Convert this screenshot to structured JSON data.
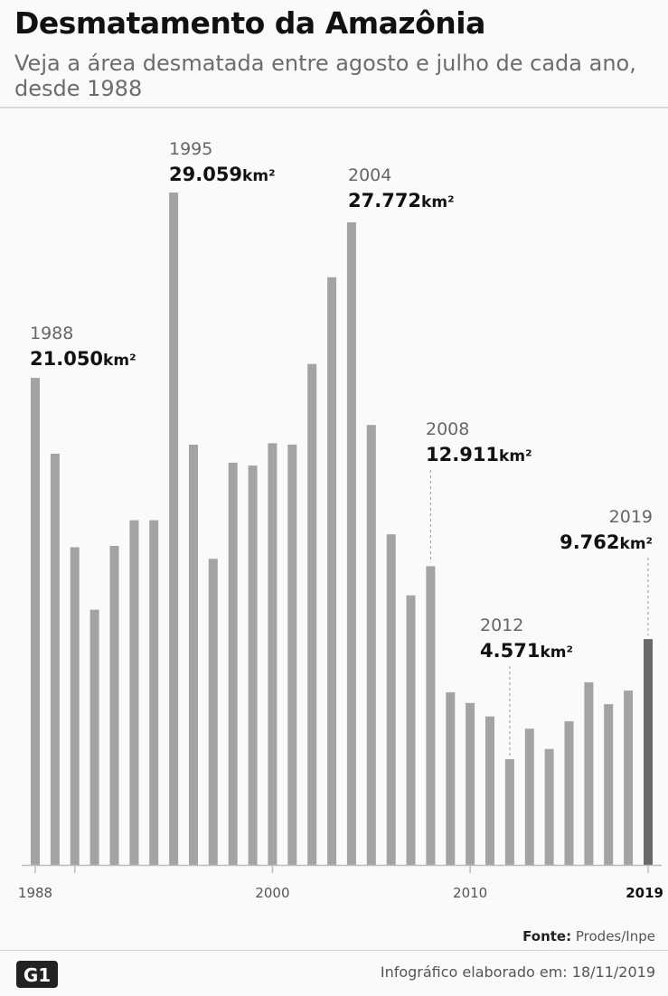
{
  "header": {
    "title": "Desmatamento da Amazônia",
    "subtitle": "Veja a área desmatada entre agosto e julho de cada ano, desde 1988"
  },
  "colors": {
    "bar": "#a3a3a3",
    "highlight": "#6a6a6a",
    "axis": "#bdbdbd"
  },
  "chart_data": {
    "type": "bar",
    "title": "Desmatamento da Amazônia",
    "subtitle": "Veja a área desmatada entre agosto e julho de cada ano, desde 1988",
    "unit": "km²",
    "categories": [
      1988,
      1989,
      1990,
      1991,
      1992,
      1993,
      1994,
      1995,
      1996,
      1997,
      1998,
      1999,
      2000,
      2001,
      2002,
      2003,
      2004,
      2005,
      2006,
      2007,
      2008,
      2009,
      2010,
      2011,
      2012,
      2013,
      2014,
      2015,
      2016,
      2017,
      2018,
      2019
    ],
    "values": [
      21050,
      17770,
      13730,
      11030,
      13786,
      14896,
      14896,
      29059,
      18161,
      13227,
      17383,
      17259,
      18226,
      18165,
      21651,
      25396,
      27772,
      19014,
      14286,
      11651,
      12911,
      7464,
      7000,
      6418,
      4571,
      5891,
      5012,
      6207,
      7893,
      6947,
      7536,
      9762
    ],
    "ylim": [
      0,
      30000
    ],
    "x_ticks": [
      "1988",
      "2000",
      "2010",
      "2019"
    ],
    "highlight_category": 2019,
    "grid": false,
    "legend": "none",
    "annotations": [
      {
        "year": "1988",
        "value": "21.050",
        "unit": "km²"
      },
      {
        "year": "1995",
        "value": "29.059",
        "unit": "km²"
      },
      {
        "year": "2004",
        "value": "27.772",
        "unit": "km²"
      },
      {
        "year": "2008",
        "value": "12.911",
        "unit": "km²"
      },
      {
        "year": "2012",
        "value": "4.571",
        "unit": "km²"
      },
      {
        "year": "2019",
        "value": "9.762",
        "unit": "km²"
      }
    ]
  },
  "footer": {
    "source_label": "Fonte:",
    "source_text": "Prodes/Inpe",
    "credit": "Infográfico elaborado em: 18/11/2019",
    "logo_text": "G1"
  }
}
